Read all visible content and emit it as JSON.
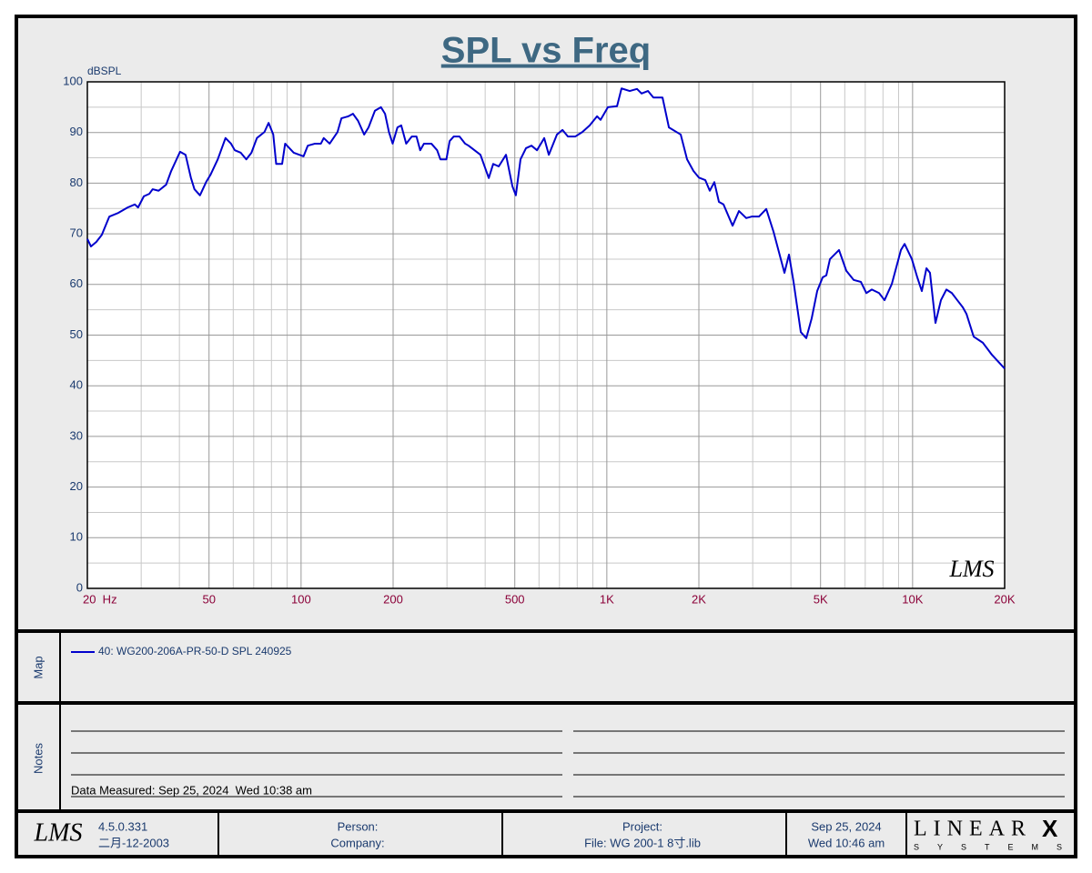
{
  "chart_data": {
    "type": "line",
    "title": "SPL vs Freq",
    "y_label": "dBSPL",
    "xscale": "log",
    "grid": true,
    "xlim": [
      20,
      20000
    ],
    "ylim": [
      0,
      100
    ],
    "xticks": [
      {
        "value": 20,
        "label": "20  Hz"
      },
      50,
      100,
      200,
      500,
      {
        "value": 1000,
        "label": "1K"
      },
      {
        "value": 2000,
        "label": "2K"
      },
      {
        "value": 5000,
        "label": "5K"
      },
      {
        "value": 10000,
        "label": "10K"
      },
      {
        "value": 20000,
        "label": "20K"
      }
    ],
    "xgrid_minor": [
      30,
      40,
      60,
      70,
      80,
      90,
      300,
      400,
      600,
      700,
      800,
      900,
      3000,
      4000,
      6000,
      7000,
      8000,
      9000
    ],
    "yticks": [
      0,
      10,
      20,
      30,
      40,
      50,
      60,
      70,
      80,
      90,
      100
    ],
    "ygrid_minor": [
      5,
      15,
      25,
      35,
      45,
      55,
      65,
      75,
      85,
      95
    ],
    "x": [
      20,
      20.55,
      21.4,
      22.3,
      23.6,
      25.2,
      27.1,
      28.6,
      29.3,
      30.6,
      31.9,
      32.7,
      34.2,
      36.2,
      37.6,
      40.2,
      41.9,
      43.6,
      44.8,
      46.7,
      48.9,
      50.6,
      53.4,
      56.6,
      59,
      60.7,
      63.5,
      66.2,
      68.8,
      71.7,
      75.9,
      78.3,
      81.1,
      82.9,
      86.7,
      88.7,
      94.6,
      101.9,
      105.2,
      111.1,
      116.1,
      118.6,
      124,
      131.6,
      135.5,
      142.8,
      147.8,
      153.6,
      160.8,
      166.2,
      174.4,
      182.5,
      188.2,
      193.8,
      199.3,
      206.6,
      212.6,
      220.7,
      230.2,
      238.5,
      245.2,
      252.3,
      266.7,
      278.6,
      285.5,
      298.8,
      306.1,
      315.5,
      329.7,
      344,
      353,
      386,
      411,
      425,
      443,
      468,
      491,
      504,
      522,
      544,
      567,
      591,
      624,
      646,
      687,
      716,
      746,
      788,
      832,
      879,
      929,
      954,
      1008,
      1080,
      1117,
      1188,
      1255,
      1299,
      1363,
      1420,
      1521,
      1596,
      1744,
      1830,
      1920,
      2000,
      2099,
      2171,
      2247,
      2326,
      2407,
      2578,
      2705,
      2857,
      2977,
      3144,
      3322,
      3509,
      3707,
      3810,
      3942,
      4080,
      4309,
      4490,
      4677,
      4875,
      5080,
      5222,
      5367,
      5745,
      6070,
      6413,
      6776,
      7060,
      7356,
      7769,
      8095,
      8552,
      9160,
      9414,
      9946,
      10360,
      10720,
      11100,
      11400,
      11880,
      12380,
      12900,
      13440,
      14000,
      14590,
      15000,
      15840,
      16970,
      18180,
      20000
    ],
    "series": [
      {
        "name": "40: WG200-206A-PR-50-D SPL 240925",
        "color": "#0000cc",
        "values": [
          69,
          67.5,
          68.4,
          69.8,
          73.4,
          74.1,
          75.2,
          75.8,
          75.2,
          77.4,
          77.9,
          78.8,
          78.5,
          79.7,
          82.4,
          86.2,
          85.6,
          81.1,
          78.8,
          77.6,
          80.2,
          81.7,
          84.7,
          88.9,
          87.8,
          86.5,
          86,
          84.7,
          86,
          88.9,
          90.1,
          91.9,
          89.6,
          83.8,
          83.8,
          87.8,
          86,
          85.3,
          87.4,
          87.8,
          87.8,
          88.9,
          87.8,
          90.1,
          92.8,
          93.2,
          93.7,
          92.3,
          89.6,
          91,
          94.3,
          95,
          93.7,
          90.1,
          87.8,
          91,
          91.4,
          87.8,
          89.2,
          89.2,
          86.5,
          87.8,
          87.8,
          86.5,
          84.7,
          84.7,
          88.3,
          89.2,
          89.2,
          87.8,
          87.4,
          85.6,
          81,
          83.8,
          83.3,
          85.6,
          79.4,
          77.6,
          84.7,
          86.9,
          87.4,
          86.5,
          88.9,
          85.6,
          89.6,
          90.5,
          89.2,
          89.2,
          90.1,
          91.4,
          93.2,
          92.5,
          95,
          95.2,
          98.7,
          98.2,
          98.6,
          97.7,
          98.2,
          96.9,
          96.9,
          91,
          89.6,
          84.7,
          82.4,
          81.1,
          80.6,
          78.5,
          80.2,
          76.3,
          75.8,
          71.6,
          74.5,
          73.1,
          73.4,
          73.4,
          74.9,
          70.4,
          65,
          62.3,
          65.9,
          60.5,
          50.6,
          49.4,
          53.3,
          58.7,
          61.4,
          61.8,
          65,
          66.8,
          62.7,
          60.9,
          60.5,
          58.3,
          59,
          58.3,
          56.9,
          60.1,
          66.8,
          68,
          65,
          61.4,
          58.7,
          63.2,
          62.3,
          52.4,
          56.9,
          59,
          58.3,
          56.9,
          55.5,
          54.2,
          49.7,
          48.5,
          46.1,
          43.4
        ]
      }
    ],
    "watermark": "LMS"
  },
  "map": {
    "label": "Map"
  },
  "notes": {
    "label": "Notes",
    "measured": "Data Measured: Sep 25, 2024  Wed 10:38 am"
  },
  "footer": {
    "logo": "LMS",
    "version": "4.5.0.331",
    "build_date": "二月-12-2003",
    "person": "Person:",
    "company": "Company:",
    "project": "Project:",
    "file": "File: WG 200-1 8寸.lib",
    "date": "Sep 25, 2024",
    "time": "Wed 10:46 am",
    "brand": "LINEAR",
    "brand_x": "X",
    "systems": "SYSTEMS"
  }
}
